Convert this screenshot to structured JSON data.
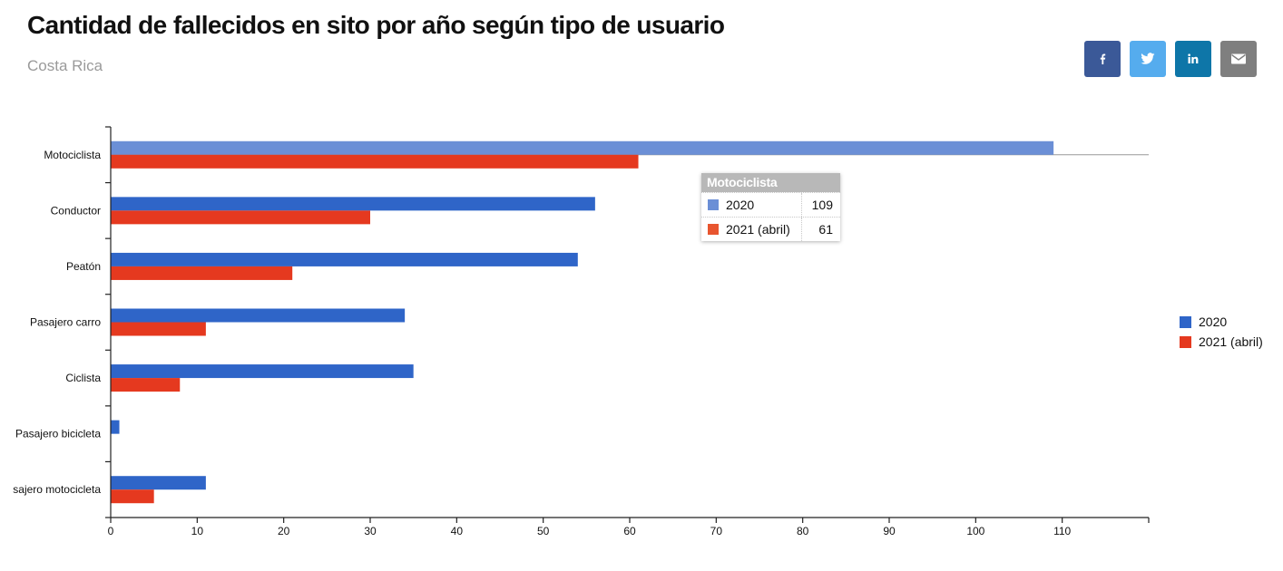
{
  "header": {
    "title": "Cantidad de fallecidos en sito por año según tipo de usuario",
    "subtitle": "Costa Rica"
  },
  "share": [
    {
      "name": "facebook",
      "color": "#3b5998",
      "icon": "facebook-icon"
    },
    {
      "name": "twitter",
      "color": "#55acee",
      "icon": "twitter-icon"
    },
    {
      "name": "linkedin",
      "color": "#0e76a8",
      "icon": "linkedin-icon"
    },
    {
      "name": "email",
      "color": "#7f7f7f",
      "icon": "email-icon"
    }
  ],
  "chart_data": {
    "type": "bar",
    "orientation": "horizontal",
    "title": "Cantidad de fallecidos en sito por año según tipo de usuario",
    "subtitle": "Costa Rica",
    "categories": [
      "Motociclista",
      "Conductor",
      "Peatón",
      "Pasajero carro",
      "Ciclista",
      "Pasajero bicicleta",
      "sajero motocicleta"
    ],
    "series": [
      {
        "name": "2020",
        "color": "#2f65c8",
        "values": [
          109,
          56,
          54,
          34,
          35,
          1,
          11
        ]
      },
      {
        "name": "2021 (abril)",
        "color": "#e5391f",
        "values": [
          61,
          30,
          21,
          11,
          8,
          0,
          5
        ]
      }
    ],
    "xlim": [
      0,
      120
    ],
    "xticks": [
      0,
      10,
      20,
      30,
      40,
      50,
      60,
      70,
      80,
      90,
      100,
      110
    ],
    "grid": false,
    "legend": "right",
    "highlighted_category": 0,
    "highlight_color": "#6b8fd6"
  },
  "tooltip": {
    "title": "Motociclista",
    "rows": [
      {
        "label": "2020",
        "value": "109",
        "color": "#6b8fd6"
      },
      {
        "label": "2021 (abril)",
        "value": "61",
        "color": "#e8552f"
      }
    ]
  }
}
